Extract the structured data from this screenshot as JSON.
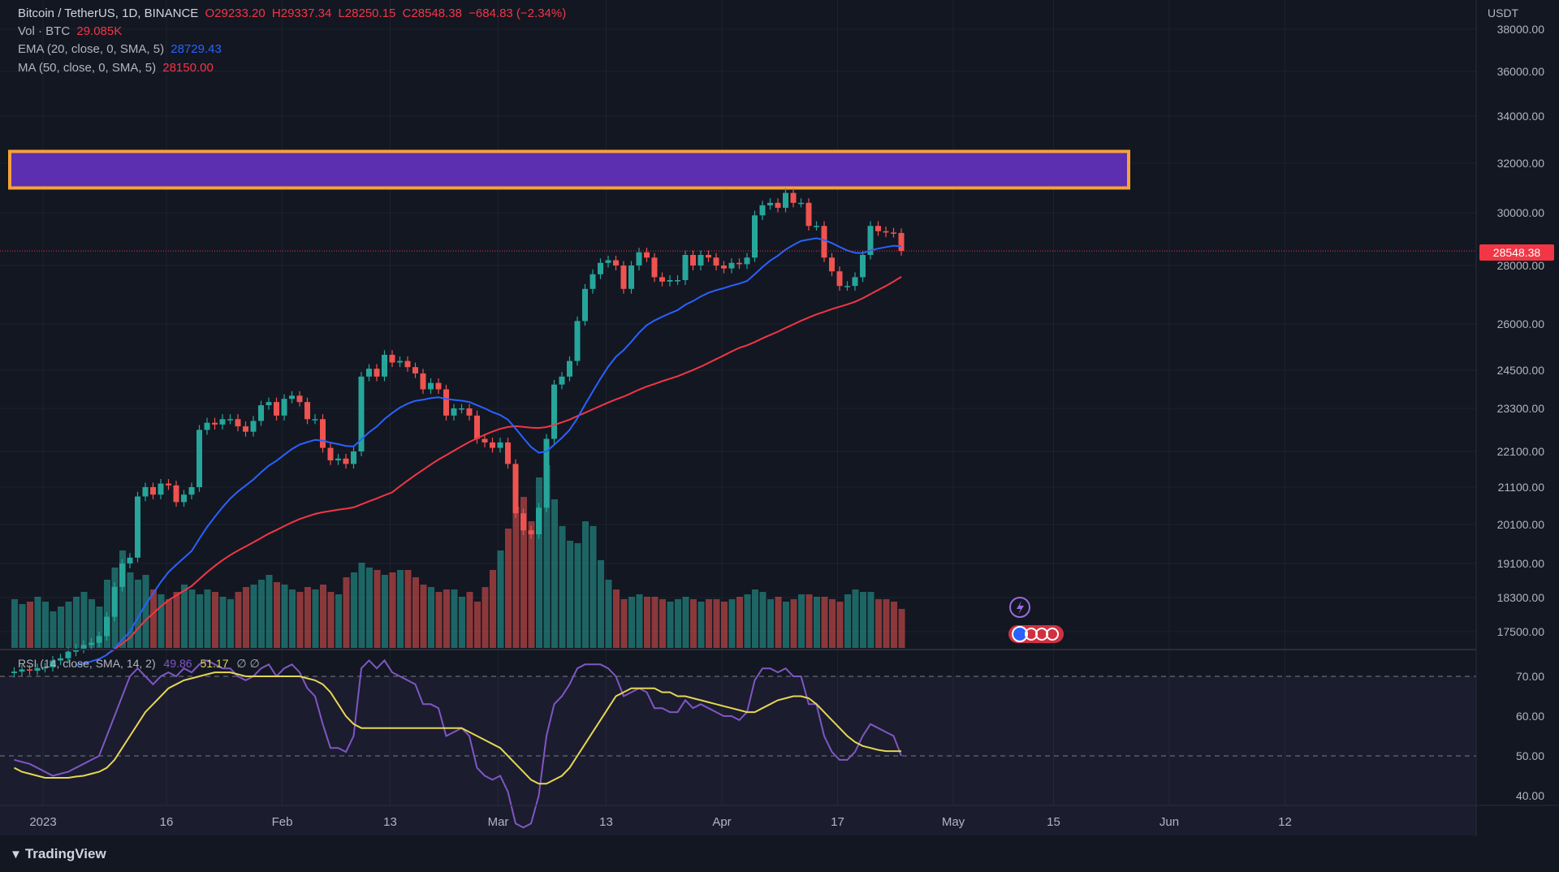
{
  "legend": {
    "symbol": "Bitcoin / TetherUS, 1D, BINANCE",
    "open": "O29233.20",
    "high": "H29337.34",
    "low": "L28250.15",
    "close": "C28548.38",
    "change": "−684.83 (−2.34%)",
    "vol_label": "Vol · BTC",
    "vol_value": "29.085K",
    "ema_label": "EMA (20, close, 0, SMA, 5)",
    "ema_value": "28729.43",
    "ma_label": "MA (50, close, 0, SMA, 5)",
    "ma_value": "28150.00"
  },
  "rsi_legend": {
    "label": "RSI (14, close, SMA, 14, 2)",
    "rsi_value": "49.86",
    "sma_value": "51.17",
    "extra": "∅ ∅"
  },
  "price_axis": {
    "currency": "USDT",
    "last_price": "28548.38"
  },
  "brand": "TradingView",
  "colors": {
    "background": "#131722",
    "up": "#26a69a",
    "down": "#ef5350",
    "ema": "#2962ff",
    "ma": "#f23645",
    "rsi": "#7e57c2",
    "rsi_sma": "#e6d655",
    "zone_fill": "#5b2fb0",
    "zone_border": "#f6a23a"
  },
  "chart_data": {
    "type": "candlestick",
    "title": "Bitcoin / TetherUS, 1D, BINANCE",
    "price_ticks": [
      "38000.00",
      "36000.00",
      "34000.00",
      "32000.00",
      "30000.00",
      "28000.00",
      "26000.00",
      "24500.00",
      "23300.00",
      "22100.00",
      "21100.00",
      "20100.00",
      "19100.00",
      "18300.00",
      "17500.00"
    ],
    "x_ticks": [
      "2023",
      "16",
      "Feb",
      "13",
      "Mar",
      "13",
      "Apr",
      "17",
      "May",
      "15",
      "Jun",
      "12"
    ],
    "rsi_ticks": [
      "70.00",
      "60.00",
      "50.00",
      "40.00"
    ],
    "resistance_zone": {
      "low": 31000,
      "high": 32500
    },
    "closes": [
      16600,
      16650,
      16620,
      16680,
      16700,
      16850,
      16900,
      17050,
      17120,
      17200,
      17250,
      17400,
      17850,
      18550,
      19100,
      19250,
      20850,
      21100,
      20900,
      21200,
      21150,
      20700,
      20900,
      21100,
      22700,
      22900,
      22850,
      23000,
      23000,
      22800,
      22650,
      22950,
      23400,
      23500,
      23100,
      23600,
      23700,
      23500,
      23000,
      23000,
      22200,
      21850,
      21900,
      21750,
      22100,
      24300,
      24550,
      24300,
      25000,
      24750,
      24800,
      24600,
      24400,
      23900,
      24100,
      23900,
      23100,
      23300,
      23300,
      23100,
      22450,
      22350,
      22200,
      22350,
      21750,
      20400,
      19950,
      19850,
      20550,
      22450,
      24050,
      24300,
      24800,
      26100,
      27200,
      27700,
      28100,
      28200,
      28000,
      27200,
      28000,
      28500,
      28300,
      27600,
      27450,
      27500,
      27500,
      28400,
      28000,
      28400,
      28300,
      28000,
      27900,
      28100,
      28050,
      28300,
      29900,
      30300,
      30400,
      30200,
      30800,
      30400,
      30400,
      29500,
      29500,
      28300,
      27800,
      27300,
      27300,
      27600,
      28400,
      29500,
      29300,
      29250,
      29233,
      28548
    ],
    "volumes": [
      200,
      180,
      190,
      210,
      190,
      150,
      170,
      190,
      210,
      230,
      200,
      170,
      280,
      330,
      400,
      310,
      280,
      300,
      240,
      220,
      200,
      230,
      260,
      240,
      220,
      240,
      230,
      210,
      200,
      230,
      250,
      260,
      280,
      300,
      270,
      260,
      240,
      230,
      250,
      240,
      260,
      230,
      220,
      290,
      310,
      350,
      330,
      320,
      300,
      310,
      320,
      320,
      290,
      260,
      250,
      230,
      240,
      240,
      210,
      230,
      190,
      250,
      320,
      400,
      490,
      580,
      620,
      520,
      700,
      750,
      610,
      500,
      440,
      430,
      520,
      500,
      360,
      280,
      240,
      200,
      210,
      220,
      210,
      210,
      200,
      190,
      200,
      210,
      200,
      190,
      200,
      200,
      190,
      200,
      210,
      220,
      240,
      230,
      200,
      210,
      190,
      200,
      220,
      220,
      210,
      210,
      200,
      190,
      220,
      240,
      230,
      230,
      200,
      200,
      190,
      160
    ],
    "rsi": [
      49,
      48.5,
      48,
      47,
      46,
      45,
      45.5,
      46,
      47,
      48,
      49,
      50,
      55,
      60,
      65,
      70,
      72,
      70,
      68,
      70,
      71,
      70,
      72,
      71,
      73,
      74,
      73,
      72,
      72,
      70,
      69,
      70,
      72,
      73,
      70,
      72,
      73,
      71,
      67,
      65,
      58,
      52,
      52,
      51,
      55,
      72,
      74,
      72,
      75,
      71,
      70,
      69,
      68,
      63,
      63,
      62,
      55,
      56,
      57,
      55,
      47,
      45,
      44,
      45,
      41,
      33,
      32,
      33,
      40,
      55,
      63,
      65,
      68,
      72,
      73,
      73,
      73,
      72,
      70,
      65,
      66,
      67,
      66,
      62,
      62,
      61,
      61,
      64,
      62,
      63,
      62,
      61,
      60,
      60,
      59,
      61,
      69,
      72,
      72,
      71,
      72,
      70,
      70,
      63,
      63,
      55,
      51,
      49,
      49,
      51,
      55,
      58,
      57,
      56,
      55,
      50
    ],
    "rsi_sma": [
      47,
      46,
      45.5,
      45,
      44.5,
      44.5,
      44.5,
      44.5,
      44.8,
      45,
      45.5,
      46,
      47,
      49,
      52,
      55,
      58,
      61,
      63,
      65,
      67,
      68,
      69,
      69.5,
      70,
      70.5,
      71,
      71,
      71,
      70.5,
      70,
      70,
      70,
      70,
      70,
      70,
      70,
      70,
      69.5,
      69,
      68,
      66,
      63,
      60,
      58,
      57,
      57,
      57,
      57,
      57,
      57,
      57,
      57,
      57,
      57,
      57,
      57,
      57,
      57,
      56,
      55,
      54,
      53,
      52,
      50,
      48,
      46,
      44,
      43,
      43,
      44,
      45,
      47,
      50,
      53,
      56,
      59,
      62,
      65,
      66,
      67,
      67,
      67,
      67,
      66,
      66,
      65,
      65,
      64.5,
      64,
      63.5,
      63,
      62.5,
      62,
      61.5,
      61,
      61,
      62,
      63,
      64,
      64.5,
      65,
      65,
      64.5,
      63,
      61,
      59,
      57,
      55,
      53.5,
      52.5,
      52,
      51.5,
      51.2,
      51.2,
      51.17
    ]
  }
}
